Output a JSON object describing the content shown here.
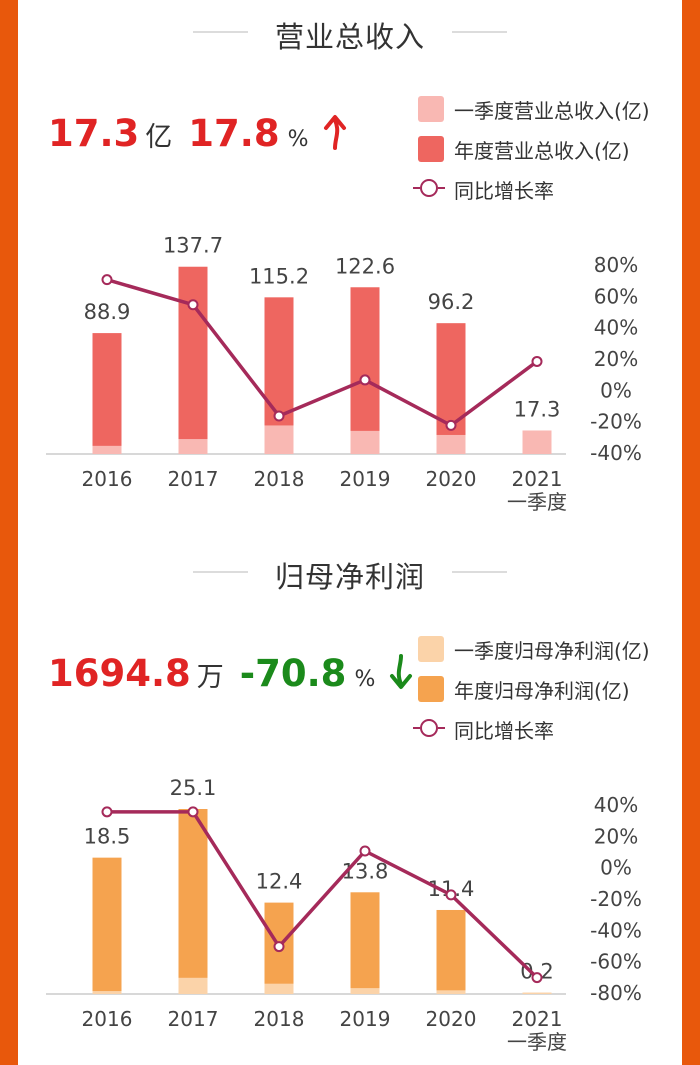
{
  "colors": {
    "revenue_annual": "#ee6660",
    "revenue_q1": "#f9b8b3",
    "profit_annual": "#f5a34f",
    "profit_q1": "#fbd3a9",
    "growth_line": "#a52a5a",
    "up_red": "#e02424",
    "down_green": "#1b8a1b"
  },
  "revenue": {
    "title": "营业总收入",
    "value": "17.3",
    "value_unit": "亿",
    "growth": "17.8",
    "growth_unit": "%",
    "trend_icon": "arrow-up-icon",
    "legend": {
      "q1": "一季度营业总收入(亿)",
      "annual": "年度营业总收入(亿)",
      "growth": "同比增长率"
    }
  },
  "profit": {
    "title": "归母净利润",
    "value": "1694.8",
    "value_unit": "万",
    "growth": "-70.8",
    "growth_unit": "%",
    "trend_icon": "arrow-down-icon",
    "legend": {
      "q1": "一季度归母净利润(亿)",
      "annual": "年度归母净利润(亿)",
      "growth": "同比增长率"
    }
  },
  "chart_data": [
    {
      "type": "bar",
      "title": "营业总收入",
      "categories": [
        "2016",
        "2017",
        "2018",
        "2019",
        "2020",
        "2021\n一季度"
      ],
      "series": [
        {
          "name": "一季度营业总收入(亿)",
          "values": [
            6.0,
            11.0,
            21.0,
            17.0,
            14.0,
            17.3
          ]
        },
        {
          "name": "年度营业总收入(亿)",
          "values": [
            88.9,
            137.7,
            115.2,
            122.6,
            96.2,
            null
          ]
        },
        {
          "name": "同比增长率",
          "values": [
            70,
            54,
            -17,
            6,
            -23,
            17.8
          ]
        }
      ],
      "bar_labels": [
        "88.9",
        "137.7",
        "115.2",
        "122.6",
        "96.2",
        "17.3"
      ],
      "y2_ticks": [
        "80%",
        "60%",
        "40%",
        "20%",
        "0%",
        "-20%",
        "-40%"
      ],
      "y2lim": [
        -40,
        80
      ],
      "ylim": [
        0,
        150
      ]
    },
    {
      "type": "bar",
      "title": "归母净利润",
      "categories": [
        "2016",
        "2017",
        "2018",
        "2019",
        "2020",
        "2021\n一季度"
      ],
      "series": [
        {
          "name": "一季度归母净利润(亿)",
          "values": [
            0.4,
            2.2,
            1.4,
            0.8,
            0.5,
            0.2
          ]
        },
        {
          "name": "年度归母净利润(亿)",
          "values": [
            18.5,
            25.1,
            12.4,
            13.8,
            11.4,
            null
          ]
        },
        {
          "name": "同比增长率",
          "values": [
            35,
            35,
            -51,
            10,
            -18,
            -70.8
          ]
        }
      ],
      "bar_labels": [
        "18.5",
        "25.1",
        "12.4",
        "13.8",
        "11.4",
        "0.2"
      ],
      "y2_ticks": [
        "40%",
        "20%",
        "0%",
        "-20%",
        "-40%",
        "-60%",
        "-80%"
      ],
      "y2lim": [
        -80,
        40
      ],
      "ylim": [
        0,
        27
      ]
    }
  ]
}
